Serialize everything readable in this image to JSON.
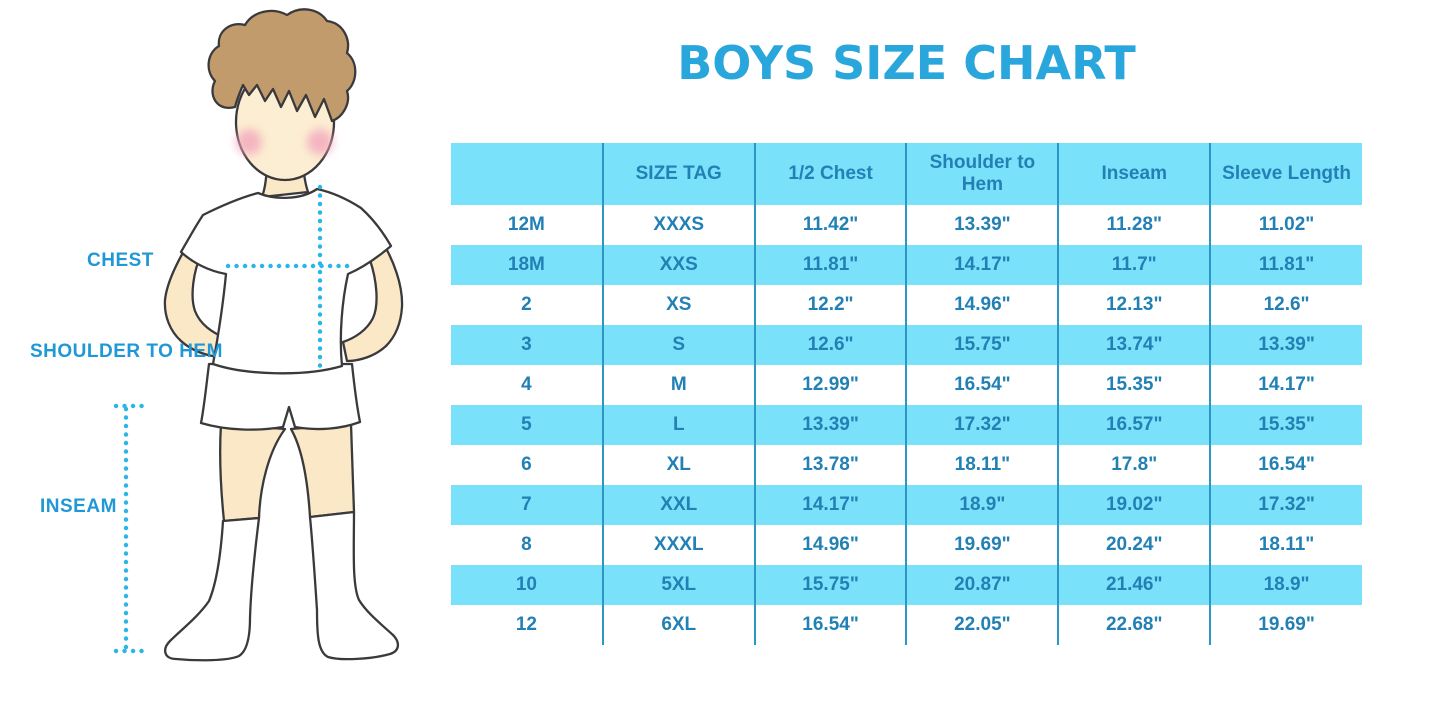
{
  "title": "BOYS SIZE CHART",
  "figure": {
    "labels": {
      "chest": "CHEST",
      "shoulder_to_hem": "SHOULDER TO HEM",
      "inseam": "INSEAM"
    }
  },
  "table": {
    "columns": [
      "",
      "SIZE TAG",
      "1/2 Chest",
      "Shoulder to Hem",
      "Inseam",
      "Sleeve Length"
    ],
    "rows": [
      [
        "12M",
        "XXXS",
        "11.42\"",
        "13.39\"",
        "11.28\"",
        "11.02\""
      ],
      [
        "18M",
        "XXS",
        "11.81\"",
        "14.17\"",
        "11.7\"",
        "11.81\""
      ],
      [
        "2",
        "XS",
        "12.2\"",
        "14.96\"",
        "12.13\"",
        "12.6\""
      ],
      [
        "3",
        "S",
        "12.6\"",
        "15.75\"",
        "13.74\"",
        "13.39\""
      ],
      [
        "4",
        "M",
        "12.99\"",
        "16.54\"",
        "15.35\"",
        "14.17\""
      ],
      [
        "5",
        "L",
        "13.39\"",
        "17.32\"",
        "16.57\"",
        "15.35\""
      ],
      [
        "6",
        "XL",
        "13.78\"",
        "18.11\"",
        "17.8\"",
        "16.54\""
      ],
      [
        "7",
        "XXL",
        "14.17\"",
        "18.9\"",
        "19.02\"",
        "17.32\""
      ],
      [
        "8",
        "XXXL",
        "14.96\"",
        "19.69\"",
        "20.24\"",
        "18.11\""
      ],
      [
        "10",
        "5XL",
        "15.75\"",
        "20.87\"",
        "21.46\"",
        "18.9\""
      ],
      [
        "12",
        "6XL",
        "16.54\"",
        "22.05\"",
        "22.68\"",
        "19.69\""
      ]
    ]
  },
  "colors": {
    "title_blue": "#29A6DB",
    "table_text_blue": "#2280B5",
    "stripe_blue": "#79E2FA",
    "divider_blue": "#2A97C5",
    "label_blue": "#2098D6",
    "dotted_line_blue": "#29B5E8",
    "skin": "#FAE8C6",
    "hair_brown": "#C29B6C",
    "blush_pink": "#F2A3BC",
    "outline": "#3A3A3C",
    "background": "#FFFFFF"
  }
}
